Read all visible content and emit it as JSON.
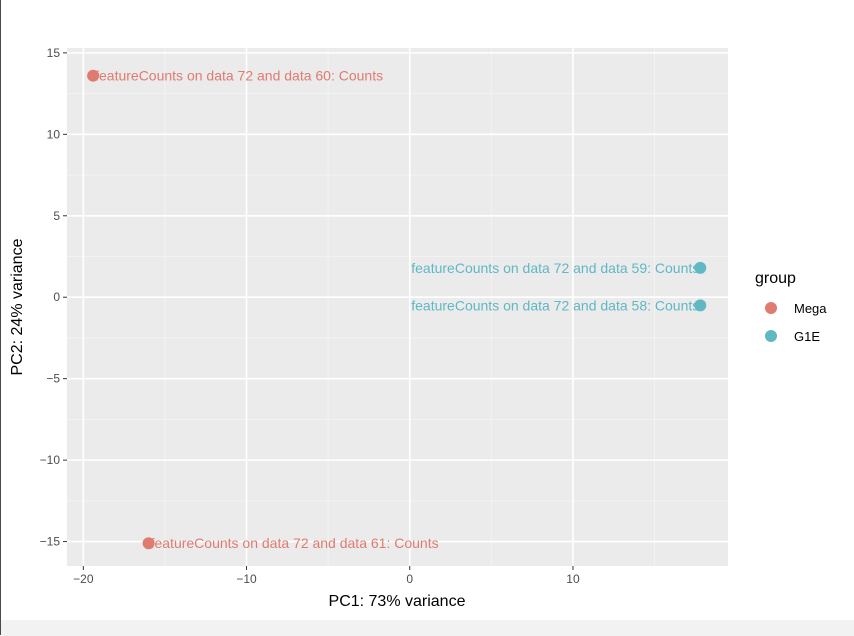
{
  "chart_data": {
    "type": "scatter",
    "xlabel": "PC1: 73% variance",
    "ylabel": "PC2: 24% variance",
    "xlim": [
      -21,
      19.5
    ],
    "ylim": [
      -16.5,
      15.3
    ],
    "x_ticks": [
      -20,
      -10,
      0,
      10
    ],
    "y_ticks": [
      -15,
      -10,
      -5,
      0,
      5,
      10,
      15
    ],
    "grid": true,
    "legend": {
      "title": "group",
      "placement": "right",
      "entries": [
        {
          "name": "Mega",
          "color": "#E07B6F"
        },
        {
          "name": "G1E",
          "color": "#5FB8C4"
        }
      ]
    },
    "points": [
      {
        "x": -19.4,
        "y": 13.6,
        "group": "Mega",
        "label": "featureCounts on data 72 and data 60: Counts",
        "label_anchor": "start"
      },
      {
        "x": -16.0,
        "y": -15.1,
        "group": "Mega",
        "label": "featureCounts on data 72 and data 61: Counts",
        "label_anchor": "start"
      },
      {
        "x": 17.8,
        "y": 1.8,
        "group": "G1E",
        "label": "featureCounts on data 72 and data 59: Counts",
        "label_anchor": "end"
      },
      {
        "x": 17.8,
        "y": -0.5,
        "group": "G1E",
        "label": "featureCounts on data 72 and data 58: Counts",
        "label_anchor": "end"
      }
    ]
  }
}
